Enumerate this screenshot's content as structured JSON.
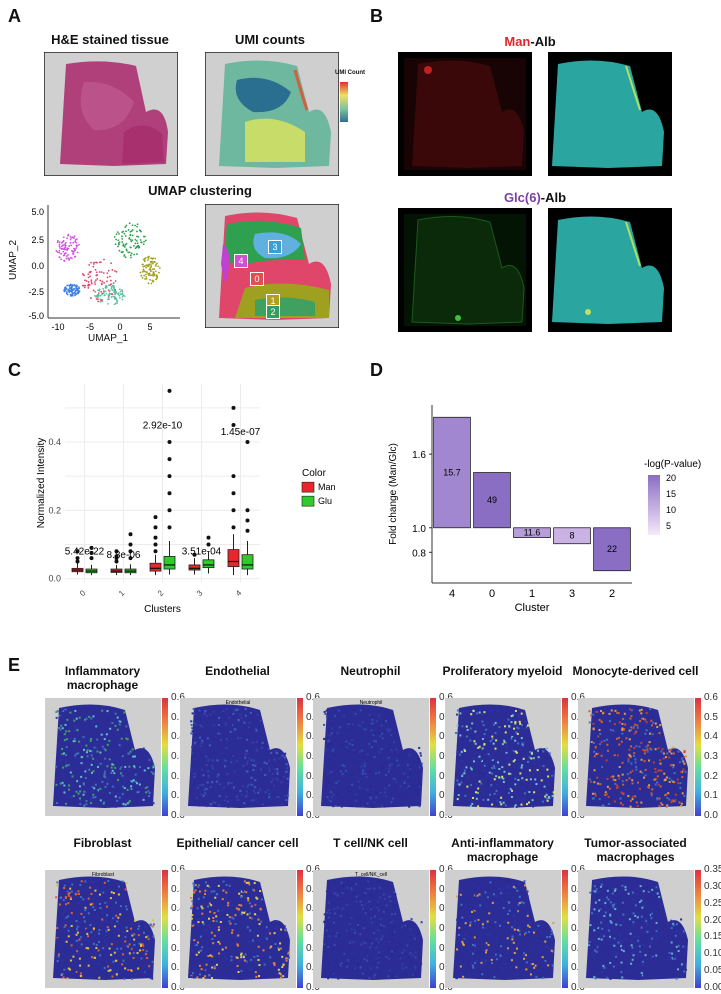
{
  "panels": {
    "A": {
      "letter": "A",
      "he_title": "H&E stained tissue",
      "umi_title": "UMI counts",
      "umi_legend_title": "UMI Count",
      "umap_title": "UMAP clustering",
      "umap_xlabel": "UMAP_1",
      "umap_ylabel": "UMAP_2",
      "umap_xticks": [
        "-10",
        "-5",
        "0",
        "5"
      ],
      "umap_yticks": [
        "5.0",
        "2.5",
        "0.0",
        "-2.5",
        "-5.0"
      ],
      "cluster_labels": [
        "0",
        "1",
        "2",
        "3",
        "4"
      ]
    },
    "B": {
      "letter": "B",
      "man_prefix": "Man",
      "man_suffix": "-Alb",
      "glc_prefix": "Glc(6)",
      "glc_suffix": "-Alb"
    },
    "C": {
      "letter": "C"
    },
    "D": {
      "letter": "D"
    },
    "E": {
      "letter": "E",
      "row1": [
        {
          "title": "Inflammatory macrophage",
          "ticks": [
            "0.6",
            "0.5",
            "0.4",
            "0.3",
            "0.2",
            "0.1",
            "0.0"
          ]
        },
        {
          "title": "Endothelial",
          "subtitle": "Endothelial",
          "ticks": [
            "0.6",
            "0.5",
            "0.4",
            "0.3",
            "0.2",
            "0.1",
            "0.0"
          ]
        },
        {
          "title": "Neutrophil",
          "subtitle": "Neutrophil",
          "ticks": [
            "0.6",
            "0.5",
            "0.4",
            "0.3",
            "0.2",
            "0.1",
            "0.0"
          ]
        },
        {
          "title": "Proliferatory myeloid",
          "ticks": [
            "0.6",
            "0.5",
            "0.4",
            "0.3",
            "0.2",
            "0.1",
            "0.0"
          ]
        },
        {
          "title": "Monocyte-derived cell",
          "ticks": [
            "0.6",
            "0.5",
            "0.4",
            "0.3",
            "0.2",
            "0.1",
            "0.0"
          ]
        }
      ],
      "row2": [
        {
          "title": "Fibroblast",
          "subtitle": "Fibroblast",
          "ticks": [
            "0.6",
            "0.5",
            "0.4",
            "0.3",
            "0.2",
            "0.1",
            "0.0"
          ]
        },
        {
          "title": "Epithelial/ cancer cell",
          "ticks": [
            "0.6",
            "0.5",
            "0.4",
            "0.3",
            "0.2",
            "0.1",
            "0.0"
          ]
        },
        {
          "title": "T cell/NK cell",
          "subtitle": "T_cell/NK_cell",
          "ticks": [
            "0.6",
            "0.5",
            "0.4",
            "0.3",
            "0.2",
            "0.1",
            "0.0"
          ]
        },
        {
          "title": "Anti-inflammatory macrophage",
          "ticks": [
            "0.6",
            "0.5",
            "0.4",
            "0.3",
            "0.2",
            "0.1",
            "0.0"
          ]
        },
        {
          "title": "Tumor-associated macrophages",
          "ticks": [
            "0.35",
            "0.30",
            "0.25",
            "0.20",
            "0.15",
            "0.10",
            "0.05",
            "0.00"
          ]
        }
      ]
    }
  },
  "chart_data": [
    {
      "type": "box",
      "xlabel": "Clusters",
      "ylabel": "Normalized Intensity",
      "categories": [
        "0",
        "1",
        "2",
        "3",
        "4"
      ],
      "yticks": [
        "0.0",
        "0.2",
        "0.4"
      ],
      "ylim": [
        -0.01,
        0.57
      ],
      "legend_title": "Color",
      "legend_placement": "right",
      "grid": true,
      "series": [
        {
          "name": "Man",
          "color": "#e8262b",
          "medians": [
            0.025,
            0.022,
            0.03,
            0.03,
            0.05
          ],
          "q1": [
            0.02,
            0.018,
            0.022,
            0.025,
            0.035
          ],
          "q3": [
            0.03,
            0.028,
            0.045,
            0.04,
            0.085
          ],
          "whisker_high": [
            0.045,
            0.04,
            0.07,
            0.06,
            0.13
          ],
          "whisker_low": [
            0.012,
            0.01,
            0.01,
            0.012,
            0.01
          ],
          "outliers": [
            [
              0.06,
              0.08,
              0.05
            ],
            [
              0.05,
              0.065,
              0.08,
              0.06
            ],
            [
              0.08,
              0.1,
              0.12,
              0.15,
              0.18
            ],
            [
              0.07
            ],
            [
              0.15,
              0.2,
              0.25,
              0.3,
              0.45,
              0.5
            ]
          ]
        },
        {
          "name": "Glu",
          "color": "#2eca2e",
          "medians": [
            0.022,
            0.022,
            0.04,
            0.04,
            0.04
          ],
          "q1": [
            0.017,
            0.017,
            0.028,
            0.032,
            0.028
          ],
          "q3": [
            0.028,
            0.028,
            0.065,
            0.055,
            0.07
          ],
          "whisker_high": [
            0.04,
            0.042,
            0.11,
            0.08,
            0.11
          ],
          "whisker_low": [
            0.01,
            0.01,
            0.012,
            0.015,
            0.01
          ],
          "outliers": [
            [
              0.06,
              0.075,
              0.09
            ],
            [
              0.06,
              0.08,
              0.1,
              0.13
            ],
            [
              0.15,
              0.2,
              0.25,
              0.3,
              0.35,
              0.4,
              0.55
            ],
            [
              0.1,
              0.12
            ],
            [
              0.14,
              0.17,
              0.2,
              0.4
            ]
          ]
        }
      ],
      "annotations": [
        "5.42e-22",
        "8.8e-06",
        "2.92e-10",
        "3.51e-04",
        "1.45e-07"
      ],
      "annotation_y": [
        0.07,
        0.06,
        0.44,
        0.07,
        0.42
      ]
    },
    {
      "type": "bar",
      "xlabel": "Cluster",
      "ylabel": "Fold change (Man/Glc)",
      "categories": [
        "4",
        "0",
        "1",
        "3",
        "2"
      ],
      "values": [
        1.9,
        1.45,
        0.92,
        0.87,
        0.65
      ],
      "labels": [
        "15.7",
        "49",
        "11.6",
        "8",
        "22"
      ],
      "neglogp": [
        15.7,
        49,
        11.6,
        8,
        22
      ],
      "baseline": 1.0,
      "yticks": [
        "0.8",
        "1.0",
        "1.6"
      ],
      "ytick_values": [
        0.8,
        1.0,
        1.6
      ],
      "legend_title": "-log(P-value)",
      "legend_ticks": [
        "20",
        "15",
        "10",
        "5"
      ],
      "legend_placement": "right"
    }
  ]
}
